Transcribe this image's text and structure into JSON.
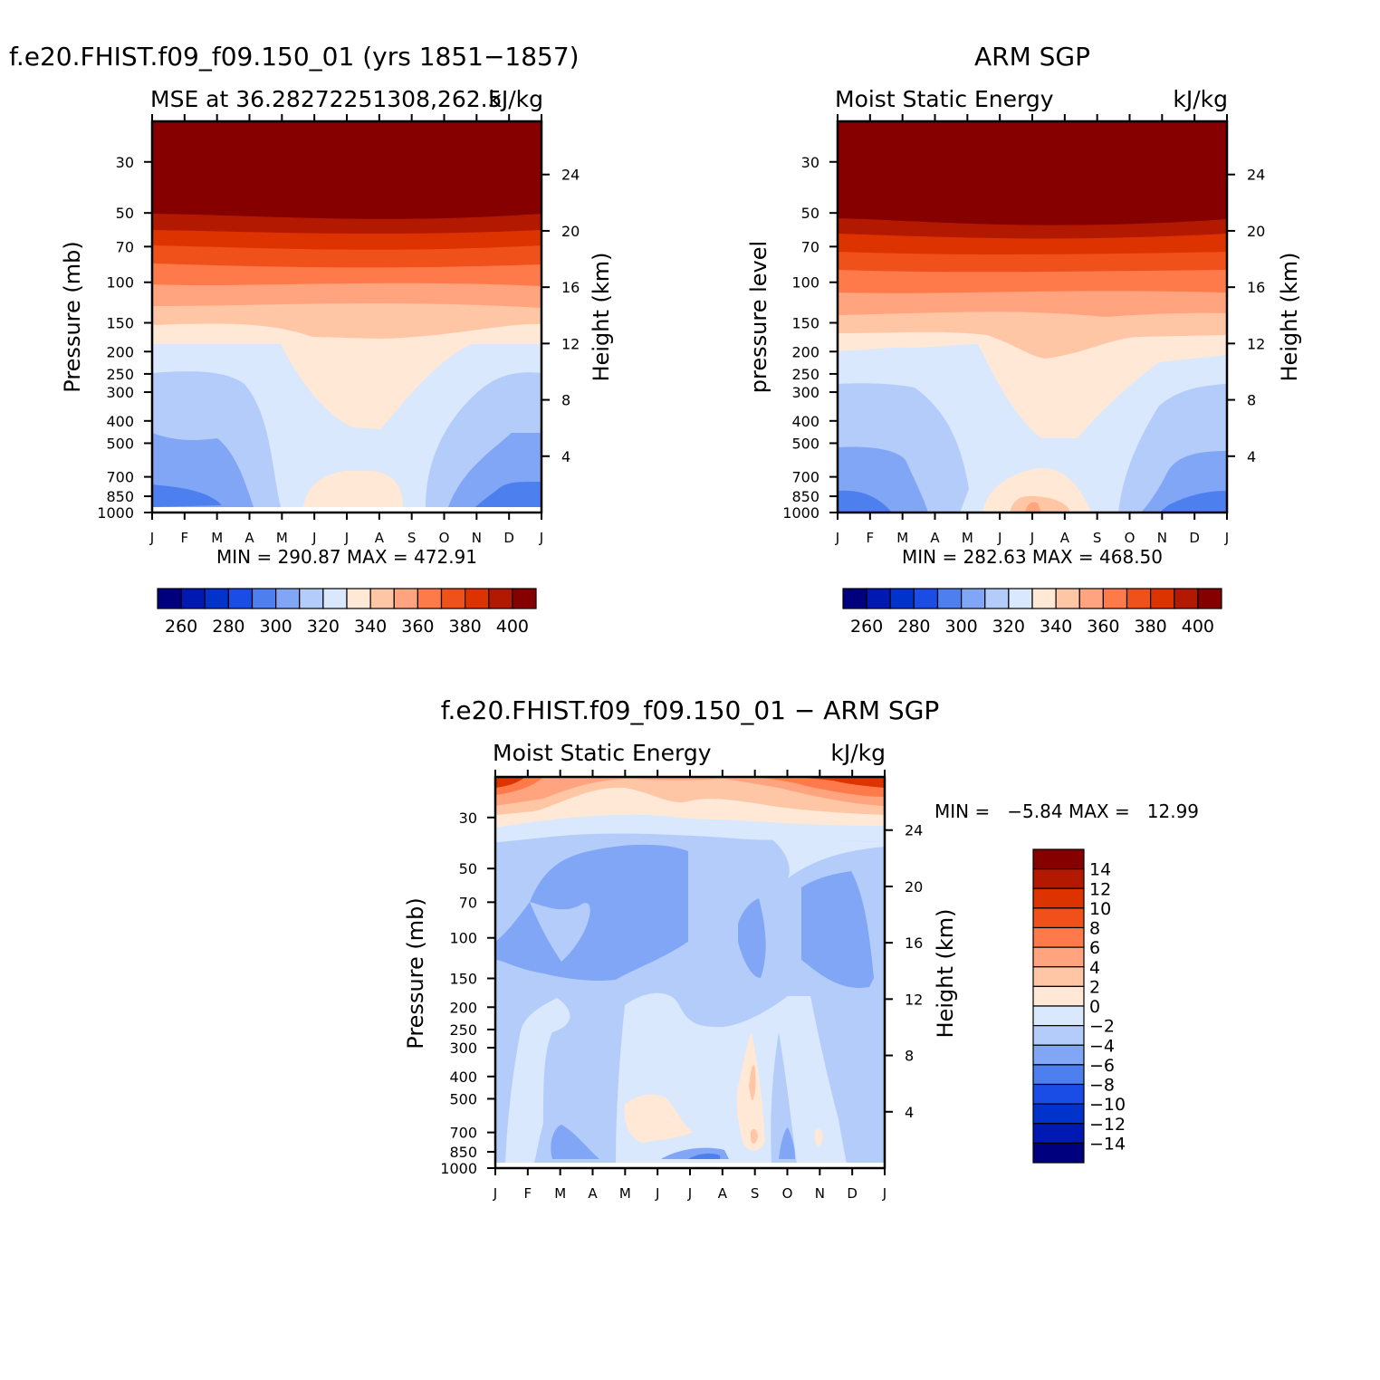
{
  "panels": {
    "model": {
      "title": "f.e20.FHIST.f09_f09.150_01 (yrs 1851−1857)",
      "subtitle_left": "MSE at 36.28272251308,262.5",
      "subtitle_right": "kJ/kg",
      "ylabel": "Pressure (mb)",
      "y2label": "Height (km)",
      "stats": "MIN = 290.87 MAX = 472.91"
    },
    "obs": {
      "title": "ARM SGP",
      "subtitle_left": "Moist Static Energy",
      "subtitle_right": "kJ/kg",
      "ylabel": "pressure level",
      "y2label": "Height (km)",
      "stats": "MIN = 282.63 MAX = 468.50"
    },
    "diff": {
      "title": "f.e20.FHIST.f09_f09.150_01 − ARM SGP",
      "subtitle_left": "Moist Static Energy",
      "subtitle_right": "kJ/kg",
      "ylabel": "Pressure (mb)",
      "y2label": "Height (km)",
      "stats": "MIN =   −5.84 MAX =   12.99"
    }
  },
  "chart_data": [
    {
      "type": "heatmap",
      "id": "model",
      "title": "f.e20.FHIST.f09_f09.150_01 (yrs 1851−1857)",
      "x_tick_labels": [
        "J",
        "F",
        "M",
        "A",
        "M",
        "J",
        "J",
        "A",
        "S",
        "O",
        "N",
        "D",
        "J"
      ],
      "y_tick_labels": [
        "30",
        "50",
        "70",
        "100",
        "150",
        "200",
        "250",
        "300",
        "400",
        "500",
        "700",
        "850",
        "1000"
      ],
      "y2_tick_labels": [
        "24",
        "20",
        "16",
        "12",
        "8",
        "4"
      ],
      "ylim_mb": [
        1000,
        20
      ],
      "min": 290.87,
      "max": 472.91,
      "colorbar_levels": [
        260,
        270,
        280,
        290,
        300,
        310,
        320,
        330,
        340,
        350,
        360,
        370,
        380,
        390,
        400
      ],
      "colorbar_labels": [
        "260",
        "280",
        "300",
        "320",
        "340",
        "360",
        "380",
        "400"
      ],
      "units": "kJ/kg"
    },
    {
      "type": "heatmap",
      "id": "obs",
      "title": "ARM SGP",
      "x_tick_labels": [
        "J",
        "F",
        "M",
        "A",
        "M",
        "J",
        "J",
        "A",
        "S",
        "O",
        "N",
        "D",
        "J"
      ],
      "y_tick_labels": [
        "30",
        "50",
        "70",
        "100",
        "150",
        "200",
        "250",
        "300",
        "400",
        "500",
        "700",
        "850",
        "1000"
      ],
      "y2_tick_labels": [
        "24",
        "20",
        "16",
        "12",
        "8",
        "4"
      ],
      "ylim_mb": [
        1000,
        20
      ],
      "min": 282.63,
      "max": 468.5,
      "colorbar_levels": [
        260,
        270,
        280,
        290,
        300,
        310,
        320,
        330,
        340,
        350,
        360,
        370,
        380,
        390,
        400
      ],
      "colorbar_labels": [
        "260",
        "280",
        "300",
        "320",
        "340",
        "360",
        "380",
        "400"
      ],
      "units": "kJ/kg"
    },
    {
      "type": "heatmap",
      "id": "diff",
      "title": "f.e20.FHIST.f09_f09.150_01 − ARM SGP",
      "x_tick_labels": [
        "J",
        "F",
        "M",
        "A",
        "M",
        "J",
        "J",
        "A",
        "S",
        "O",
        "N",
        "D",
        "J"
      ],
      "y_tick_labels": [
        "30",
        "50",
        "70",
        "100",
        "150",
        "200",
        "250",
        "300",
        "400",
        "500",
        "700",
        "850",
        "1000"
      ],
      "y2_tick_labels": [
        "24",
        "20",
        "16",
        "12",
        "8",
        "4"
      ],
      "ylim_mb": [
        1000,
        20
      ],
      "min": -5.84,
      "max": 12.99,
      "colorbar_levels": [
        -14,
        -12,
        -10,
        -8,
        -6,
        -4,
        -2,
        0,
        2,
        4,
        6,
        8,
        10,
        12,
        14
      ],
      "colorbar_labels": [
        "14",
        "12",
        "10",
        "8",
        "6",
        "4",
        "2",
        "0",
        "−2",
        "−4",
        "−6",
        "−8",
        "−10",
        "−12",
        "−14"
      ],
      "units": "kJ/kg"
    }
  ],
  "palette": [
    "#00007f",
    "#0019b2",
    "#0033cc",
    "#1a4ce6",
    "#4d7fef",
    "#80a6f5",
    "#b3ccfa",
    "#d9e8fc",
    "#ffe8d6",
    "#ffc6a6",
    "#ffa47f",
    "#ff7a4a",
    "#f0501a",
    "#dd3300",
    "#b21900",
    "#870000"
  ]
}
